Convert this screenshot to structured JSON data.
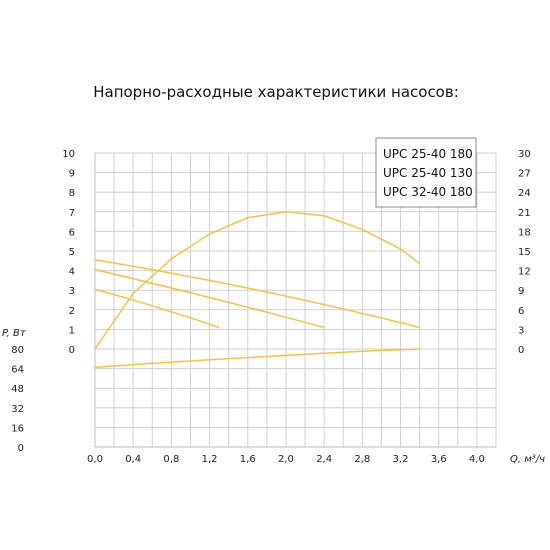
{
  "chart_data": {
    "type": "line",
    "title": "Напорно-расходные характеристики насосов:",
    "xlabel": "Q, м³/ч",
    "ylabel_left_bottom": "P, Вт",
    "x_ticks": [
      "0,0",
      "0,4",
      "0,8",
      "1,2",
      "1,6",
      "2,0",
      "2,4",
      "2,8",
      "3,2",
      "3,6",
      "4,0"
    ],
    "xlim": [
      0,
      4.2
    ],
    "head_ticks": [
      "0",
      "1",
      "2",
      "3",
      "4",
      "5",
      "6",
      "7",
      "8",
      "9",
      "10"
    ],
    "head_ylim": [
      0,
      10
    ],
    "power_ticks": [
      "0",
      "16",
      "32",
      "48",
      "64",
      "80"
    ],
    "power_ylim": [
      0,
      80
    ],
    "right_ticks": [
      "0",
      "3",
      "6",
      "9",
      "12",
      "15",
      "18",
      "21",
      "24",
      "27",
      "30"
    ],
    "right_ylim": [
      0,
      30
    ],
    "grid": true,
    "line_color": "#f2c14b",
    "legend_position": "top-right",
    "legend": [
      "UPC 25-40 180",
      "UPC 25-40 130",
      "UPC 32-40 180"
    ],
    "series": [
      {
        "kind": "head",
        "x": [
          0,
          3.4
        ],
        "y": [
          4.55,
          1.1
        ],
        "curve": 0.35
      },
      {
        "kind": "head",
        "x": [
          0,
          2.4
        ],
        "y": [
          4.05,
          1.1
        ],
        "curve": 0.1
      },
      {
        "kind": "head",
        "x": [
          0,
          1.3
        ],
        "y": [
          3.05,
          1.1
        ],
        "curve": 0.1
      },
      {
        "kind": "right",
        "x": [
          0,
          0.4,
          0.8,
          1.2,
          1.6,
          2.0,
          2.4,
          2.8,
          3.2,
          3.4
        ],
        "y": [
          0,
          8.5,
          13.8,
          17.6,
          20.1,
          21.0,
          20.4,
          18.3,
          15.3,
          13.1
        ]
      },
      {
        "kind": "power",
        "x": [
          0,
          0.4,
          0.8,
          1.2,
          1.6,
          2.0,
          2.4,
          2.8,
          3.2,
          3.4
        ],
        "y": [
          65,
          67.2,
          69.3,
          71.2,
          73,
          74.8,
          76.5,
          78.2,
          79.4,
          80
        ]
      }
    ]
  }
}
